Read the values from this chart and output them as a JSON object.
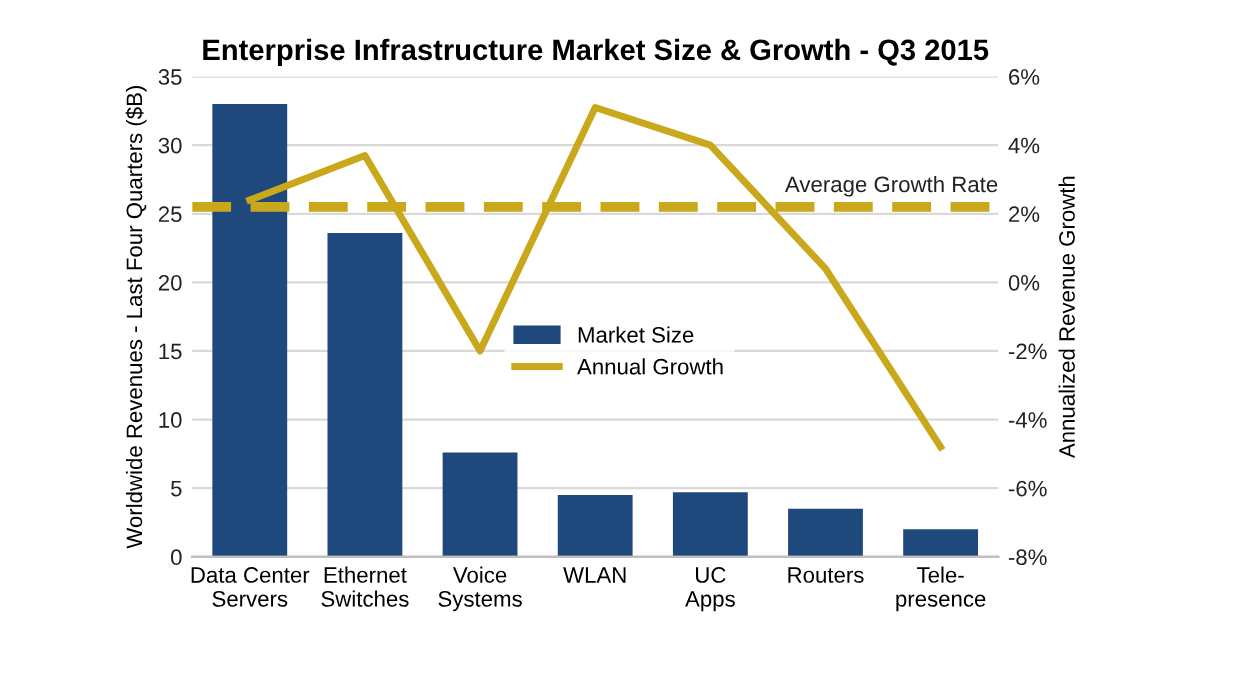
{
  "chart_data": {
    "type": "bar",
    "title": "Enterprise Infrastructure Market Size & Growth - Q3 2015",
    "categories": [
      "Data Center\nServers",
      "Ethernet\nSwitches",
      "Voice\nSystems",
      "WLAN",
      "UC\nApps",
      "Routers",
      "Tele-\npresence"
    ],
    "series": [
      {
        "name": "Market Size",
        "color": "#1f497d",
        "values": [
          33.0,
          23.6,
          7.6,
          4.5,
          4.7,
          3.5,
          2.0
        ]
      },
      {
        "name": "Annual Growth",
        "type": "line",
        "axis": "y2",
        "color": "#c9a81c",
        "values": [
          2.4,
          3.7,
          -2.0,
          5.1,
          4.0,
          0.4,
          -4.8
        ]
      }
    ],
    "ylabel": "Worldwide Revenues - Last Four Quarters ($B)",
    "y2label": "Annualized Revenue Growth",
    "ylim": [
      0,
      35
    ],
    "yticks": [
      0,
      5,
      10,
      15,
      20,
      25,
      30,
      35
    ],
    "y2lim": [
      -8,
      6
    ],
    "y2ticks": [
      {
        "value": -8,
        "label": "-8%"
      },
      {
        "value": -6,
        "label": "-6%"
      },
      {
        "value": -4,
        "label": "-4%"
      },
      {
        "value": -2,
        "label": "-2%"
      },
      {
        "value": 0,
        "label": "0%"
      },
      {
        "value": 2,
        "label": "2%"
      },
      {
        "value": 4,
        "label": "4%"
      },
      {
        "value": 6,
        "label": "6%"
      }
    ],
    "ref_lines": [
      {
        "axis": "y2",
        "value": 2.2,
        "label": "Average Growth Rate",
        "color": "#c9a81c",
        "line_style": "dashed"
      }
    ],
    "grid": "y",
    "legend": "center",
    "line_style": "solid",
    "marker": "none"
  }
}
